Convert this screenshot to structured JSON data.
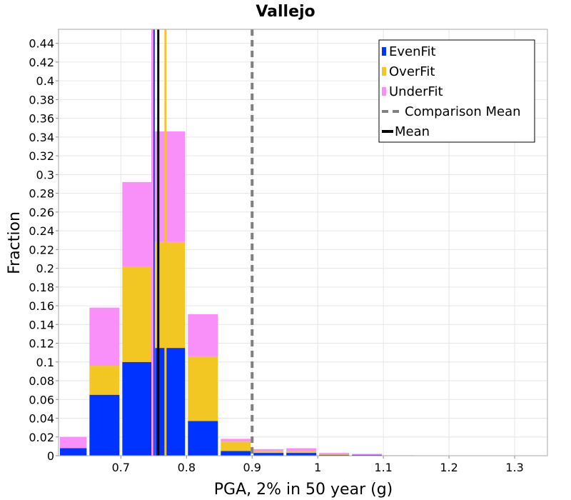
{
  "chart_data": {
    "type": "bar",
    "stacked": true,
    "title": "Vallejo",
    "xlabel": "PGA, 2% in 50 year (g)",
    "ylabel": "Fraction",
    "xlim": [
      0.605,
      1.35
    ],
    "ylim": [
      0,
      0.455
    ],
    "xticks": [
      0.7,
      0.8,
      0.9,
      1.0,
      1.1,
      1.2,
      1.3
    ],
    "xtick_labels": [
      "0.7",
      "0.8",
      "0.9",
      "1",
      "1.1",
      "1.2",
      "1.3"
    ],
    "yticks": [
      0,
      0.02,
      0.04,
      0.06,
      0.08,
      0.1,
      0.12,
      0.14,
      0.16,
      0.18,
      0.2,
      0.22,
      0.24,
      0.26,
      0.28,
      0.3,
      0.32,
      0.34,
      0.36,
      0.38,
      0.4,
      0.42,
      0.44
    ],
    "ytick_labels": [
      "0",
      "0.02",
      "0.04",
      "0.06",
      "0.08",
      "0.1",
      "0.12",
      "0.14",
      "0.16",
      "0.18",
      "0.2",
      "0.22",
      "0.24",
      "0.26",
      "0.28",
      "0.3",
      "0.32",
      "0.34",
      "0.36",
      "0.38",
      "0.4",
      "0.42",
      "0.44"
    ],
    "bin_width": 0.05,
    "bin_centers": [
      0.625,
      0.675,
      0.725,
      0.775,
      0.825,
      0.875,
      0.925,
      0.975,
      1.025,
      1.075,
      1.125,
      1.175
    ],
    "series": [
      {
        "name": "EvenFit",
        "color": "#0033ff",
        "values": [
          0.008,
          0.065,
          0.1,
          0.115,
          0.037,
          0.005,
          0.003,
          0.003,
          0.001,
          0.001,
          0.0,
          0.0
        ]
      },
      {
        "name": "OverFit",
        "color": "#f2c623",
        "values": [
          0.0,
          0.031,
          0.102,
          0.113,
          0.069,
          0.01,
          0.002,
          0.002,
          0.001,
          0.0,
          0.0,
          0.0
        ]
      },
      {
        "name": "UnderFit",
        "color": "#f990f9",
        "values": [
          0.012,
          0.062,
          0.09,
          0.118,
          0.045,
          0.003,
          0.002,
          0.003,
          0.001,
          0.001,
          0.0005,
          0.0
        ]
      }
    ],
    "vertical_lines": [
      {
        "name": "Comparison Mean",
        "x": 0.9,
        "color": "#808080",
        "style": "dashed"
      },
      {
        "name": "Mean",
        "x": 0.757,
        "color": "#000000",
        "style": "solid"
      },
      {
        "name": "EvenFit mean",
        "x": 0.75,
        "color": "#0033ff",
        "style": "solid"
      },
      {
        "name": "OverFit mean",
        "x": 0.768,
        "color": "#f2c623",
        "style": "solid"
      },
      {
        "name": "UnderFit mean",
        "x": 0.748,
        "color": "#f990f9",
        "style": "solid"
      }
    ],
    "legend": {
      "placement": "top-right",
      "entries": [
        {
          "label": "EvenFit",
          "color": "#0033ff",
          "kind": "box"
        },
        {
          "label": "OverFit",
          "color": "#f2c623",
          "kind": "box"
        },
        {
          "label": "UnderFit",
          "color": "#f990f9",
          "kind": "box"
        },
        {
          "label": "Comparison Mean",
          "color": "#808080",
          "kind": "dash"
        },
        {
          "label": "Mean",
          "color": "#000000",
          "kind": "line"
        }
      ]
    },
    "grid": true
  }
}
